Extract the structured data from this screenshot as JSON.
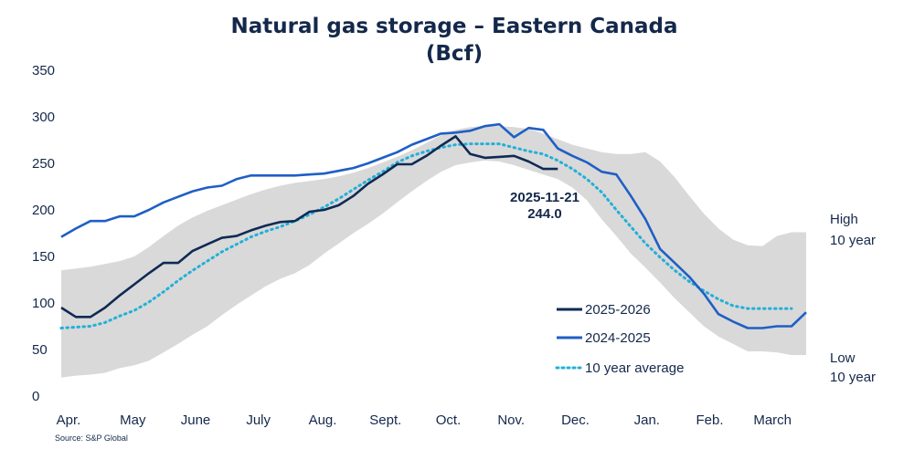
{
  "chart_data": {
    "type": "line",
    "title": "Natural gas storage – Eastern Canada",
    "subtitle": "(Bcf)",
    "xlabel": "",
    "ylabel": "",
    "ylim": [
      0,
      350
    ],
    "y_ticks": [
      0,
      50,
      100,
      150,
      200,
      250,
      300,
      350
    ],
    "x_range": [
      0,
      51
    ],
    "x_unit": "weeks since start of April",
    "categories": [
      "Apr.",
      "May",
      "June",
      "July",
      "Aug.",
      "Sept.",
      "Oct.",
      "Nov.",
      "Dec.",
      "Jan.",
      "Feb.",
      "March"
    ],
    "category_positions": [
      0.5,
      4.9,
      9.2,
      13.5,
      17.9,
      22.2,
      26.5,
      30.8,
      35.2,
      40.1,
      44.4,
      48.7
    ],
    "grid": false,
    "legend_position": "bottom-right",
    "band": {
      "name": "10 year range",
      "color": "#d9d9d9",
      "x": [
        0,
        1,
        2,
        3,
        4,
        5,
        6,
        7,
        8,
        9,
        10,
        11,
        12,
        13,
        14,
        15,
        16,
        17,
        18,
        19,
        20,
        21,
        22,
        23,
        24,
        25,
        26,
        27,
        28,
        29,
        30,
        31,
        32,
        33,
        34,
        35,
        36,
        37,
        38,
        39,
        40,
        41,
        42,
        43,
        44,
        45,
        46,
        47,
        48,
        49,
        50,
        51
      ],
      "high": [
        135,
        137,
        139,
        142,
        145,
        150,
        160,
        172,
        183,
        192,
        199,
        205,
        211,
        217,
        222,
        226,
        229,
        231,
        233,
        236,
        240,
        245,
        251,
        257,
        264,
        272,
        280,
        286,
        289,
        290,
        290,
        289,
        287,
        282,
        276,
        270,
        266,
        262,
        260,
        260,
        262,
        252,
        235,
        215,
        196,
        180,
        168,
        162,
        161,
        172,
        176,
        176
      ],
      "low": [
        20,
        22,
        23,
        25,
        30,
        33,
        38,
        47,
        56,
        66,
        75,
        87,
        98,
        108,
        118,
        126,
        132,
        141,
        153,
        164,
        175,
        185,
        196,
        208,
        220,
        231,
        241,
        248,
        251,
        253,
        252,
        248,
        243,
        238,
        233,
        224,
        210,
        190,
        172,
        153,
        138,
        122,
        105,
        90,
        75,
        64,
        56,
        48,
        48,
        47,
        44,
        44
      ]
    },
    "series": [
      {
        "name": "2025-2026",
        "color": "#0f2a55",
        "style": "solid",
        "x": [
          0,
          1,
          2,
          3,
          4,
          5,
          6,
          7,
          8,
          9,
          10,
          11,
          12,
          13,
          14,
          15,
          16,
          17,
          18,
          19,
          20,
          21,
          22,
          23,
          24,
          25,
          26,
          27,
          28,
          29,
          30,
          31,
          32,
          33,
          34
        ],
        "values": [
          95,
          85,
          85,
          95,
          108,
          120,
          132,
          143,
          143,
          156,
          163,
          170,
          172,
          178,
          183,
          187,
          188,
          198,
          200,
          205,
          215,
          228,
          238,
          249,
          249,
          258,
          269,
          279,
          260,
          256,
          257,
          258,
          252,
          244,
          244
        ]
      },
      {
        "name": "2024-2025",
        "color": "#1f5fc5",
        "style": "solid",
        "x": [
          0,
          1,
          2,
          3,
          4,
          5,
          6,
          7,
          8,
          9,
          10,
          11,
          12,
          13,
          14,
          15,
          16,
          17,
          18,
          19,
          20,
          21,
          22,
          23,
          24,
          25,
          26,
          27,
          28,
          29,
          30,
          31,
          32,
          33,
          34,
          35,
          36,
          37,
          38,
          39,
          40,
          41,
          42,
          43,
          44,
          45,
          46,
          47,
          48,
          49,
          50,
          51
        ],
        "values": [
          171,
          180,
          188,
          188,
          193,
          193,
          200,
          208,
          214,
          220,
          224,
          226,
          233,
          237,
          237,
          237,
          237,
          238,
          239,
          242,
          245,
          250,
          256,
          262,
          270,
          276,
          282,
          283,
          285,
          290,
          292,
          278,
          288,
          286,
          266,
          258,
          251,
          241,
          238,
          215,
          190,
          158,
          143,
          128,
          110,
          88,
          80,
          73,
          73,
          75,
          75,
          90
        ]
      },
      {
        "name": "10 year average",
        "color": "#22b0d8",
        "style": "dotted",
        "x": [
          0,
          1,
          2,
          3,
          4,
          5,
          6,
          7,
          8,
          9,
          10,
          11,
          12,
          13,
          14,
          15,
          16,
          17,
          18,
          19,
          20,
          21,
          22,
          23,
          24,
          25,
          26,
          27,
          28,
          29,
          30,
          31,
          32,
          33,
          34,
          35,
          36,
          37,
          38,
          39,
          40,
          41,
          42,
          43,
          44,
          45,
          46,
          47,
          48,
          49,
          50
        ],
        "values": [
          73,
          74,
          75,
          79,
          86,
          92,
          101,
          112,
          124,
          135,
          145,
          155,
          163,
          171,
          177,
          182,
          188,
          195,
          203,
          212,
          222,
          232,
          241,
          251,
          258,
          263,
          267,
          270,
          271,
          271,
          271,
          267,
          263,
          260,
          253,
          244,
          233,
          219,
          200,
          182,
          164,
          149,
          135,
          123,
          113,
          104,
          97,
          94,
          94,
          94,
          94
        ]
      }
    ],
    "annotations": [
      {
        "text": "2025-11-21",
        "x": 33,
        "y": 244
      },
      {
        "text": "244.0",
        "x": 33,
        "y": 244
      }
    ],
    "band_labels": {
      "high": [
        "High",
        "10 year"
      ],
      "low": [
        "Low",
        "10 year"
      ]
    },
    "source": "Source: S&P Global"
  }
}
